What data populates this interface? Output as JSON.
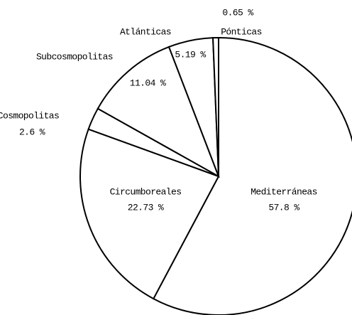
{
  "chart_data": {
    "type": "pie",
    "categories": [
      "Mediterráneas",
      "Circumboreales",
      "Cosmopolitas",
      "Subcosmopolitas",
      "Atlánticas",
      "Pónticas"
    ],
    "values": [
      57.8,
      22.73,
      2.6,
      11.04,
      5.19,
      0.65
    ],
    "value_labels": [
      "57.8 %",
      "22.73 %",
      "2.6 %",
      "11.04 %",
      "5.19 %",
      "0.65 %"
    ],
    "color": "#ffffff"
  }
}
